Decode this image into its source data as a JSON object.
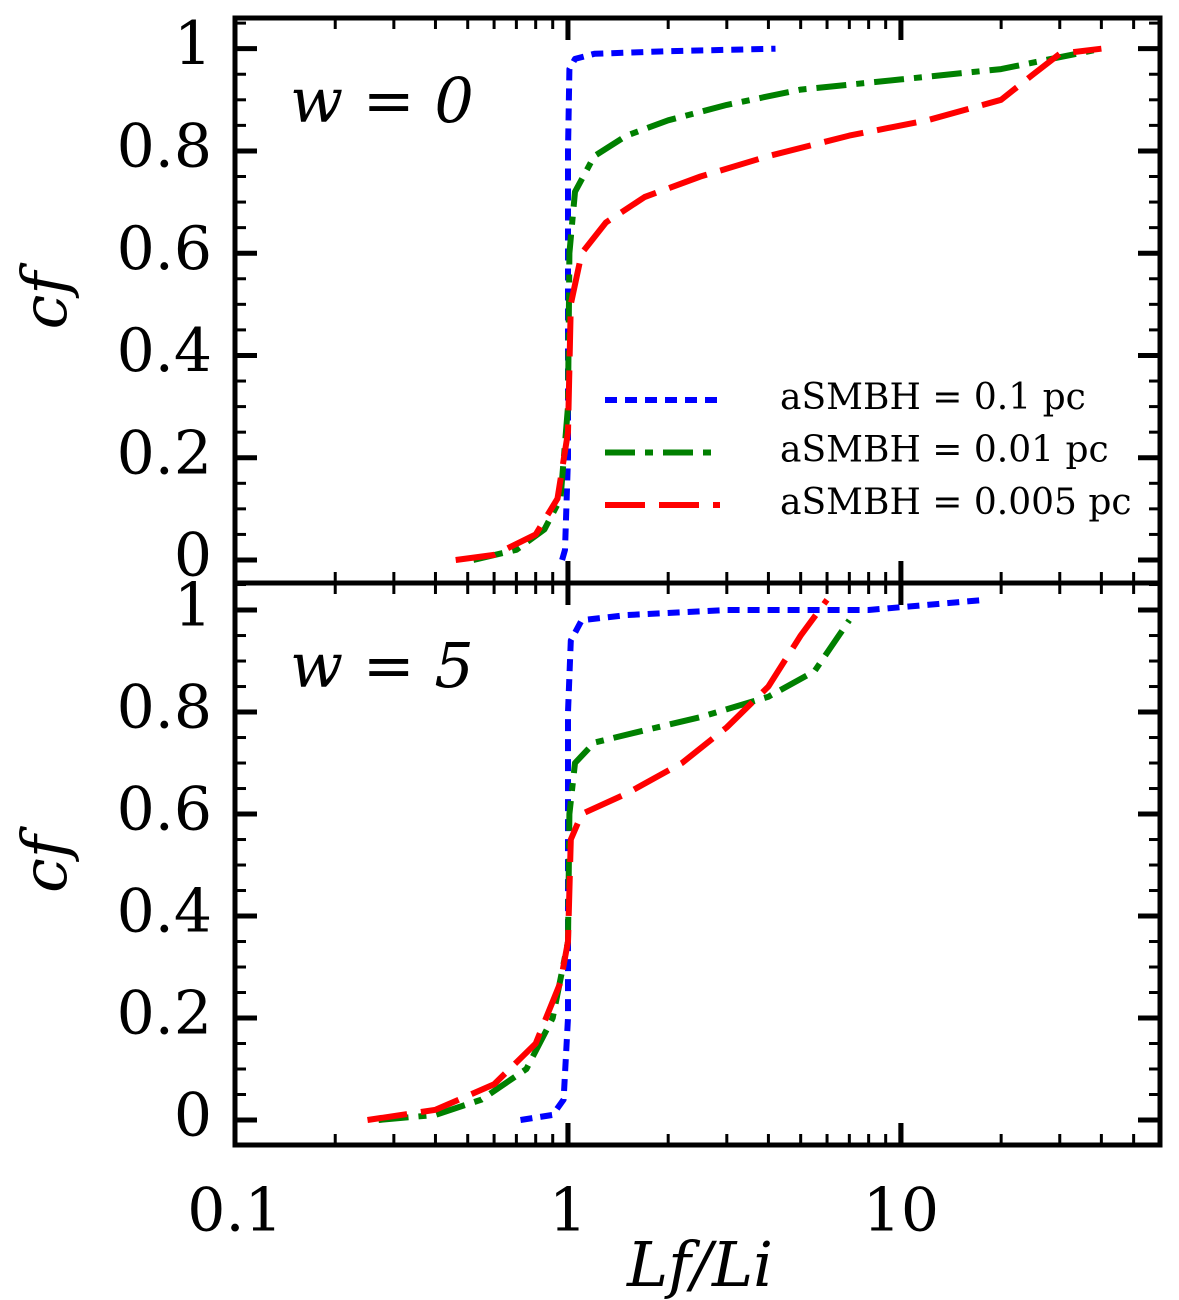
{
  "chart_data": [
    {
      "type": "line",
      "log_x": true,
      "annotation": "w = 0",
      "ylabel": "cf",
      "legend": "lower right",
      "xlim": [
        0.1,
        60
      ],
      "ylim": [
        -0.045,
        1.06
      ],
      "yticks": [
        0,
        0.2,
        0.4,
        0.6,
        0.8,
        1
      ],
      "series": [
        {
          "name": "aSMBH = 0.1 pc",
          "color": "#0000ff",
          "style": "dotted",
          "x": [
            0.96,
            0.98,
            1.0,
            1.0,
            1.01,
            1.05,
            1.2,
            2,
            4.2
          ],
          "values": [
            0,
            0.02,
            0.2,
            0.8,
            0.96,
            0.98,
            0.99,
            0.995,
            1.0
          ]
        },
        {
          "name": "aSMBH = 0.01 pc",
          "color": "#008000",
          "style": "dashdot",
          "x": [
            0.52,
            0.7,
            0.85,
            0.95,
            1.0,
            1.01,
            1.05,
            1.2,
            1.5,
            2,
            3,
            5,
            10,
            20,
            40
          ],
          "values": [
            0,
            0.02,
            0.06,
            0.12,
            0.3,
            0.6,
            0.72,
            0.79,
            0.83,
            0.86,
            0.89,
            0.92,
            0.94,
            0.96,
            1.0
          ]
        },
        {
          "name": "aSMBH = 0.005 pc",
          "color": "#ff0000",
          "style": "dashed",
          "x": [
            0.46,
            0.6,
            0.8,
            0.93,
            1.0,
            1.02,
            1.1,
            1.3,
            1.7,
            2.5,
            4,
            7,
            12,
            20,
            25,
            30,
            40
          ],
          "values": [
            0,
            0.01,
            0.05,
            0.12,
            0.25,
            0.5,
            0.6,
            0.66,
            0.71,
            0.75,
            0.79,
            0.83,
            0.86,
            0.9,
            0.95,
            0.99,
            1.0
          ]
        }
      ]
    },
    {
      "type": "line",
      "log_x": true,
      "annotation": "w = 5",
      "ylabel": "cf",
      "xlabel": "Lf/Li",
      "xlim": [
        0.1,
        60
      ],
      "ylim": [
        -0.049,
        1.053
      ],
      "yticks": [
        0,
        0.2,
        0.4,
        0.6,
        0.8,
        1
      ],
      "xticks": [
        0.1,
        1,
        10
      ],
      "series": [
        {
          "color": "#0000ff",
          "style": "dotted",
          "x": [
            0.72,
            0.9,
            0.97,
            1.0,
            1.0,
            1.02,
            1.1,
            1.5,
            3,
            8,
            18
          ],
          "values": [
            0,
            0.01,
            0.04,
            0.2,
            0.8,
            0.94,
            0.98,
            0.99,
            1.0,
            1.0,
            1.02
          ]
        },
        {
          "color": "#008000",
          "style": "dashdot",
          "x": [
            0.27,
            0.4,
            0.55,
            0.75,
            0.9,
            1.0,
            1.01,
            1.05,
            1.2,
            1.6,
            2.5,
            4,
            5.5,
            7
          ],
          "values": [
            0,
            0.01,
            0.04,
            0.1,
            0.2,
            0.35,
            0.6,
            0.7,
            0.74,
            0.76,
            0.79,
            0.83,
            0.88,
            0.98
          ]
        },
        {
          "color": "#ff0000",
          "style": "dashed",
          "x": [
            0.25,
            0.4,
            0.6,
            0.8,
            0.95,
            1.0,
            1.02,
            1.1,
            1.5,
            2.2,
            3,
            4,
            5,
            6
          ],
          "values": [
            0,
            0.02,
            0.07,
            0.15,
            0.27,
            0.35,
            0.55,
            0.6,
            0.64,
            0.7,
            0.77,
            0.85,
            0.95,
            1.02
          ]
        }
      ]
    }
  ]
}
